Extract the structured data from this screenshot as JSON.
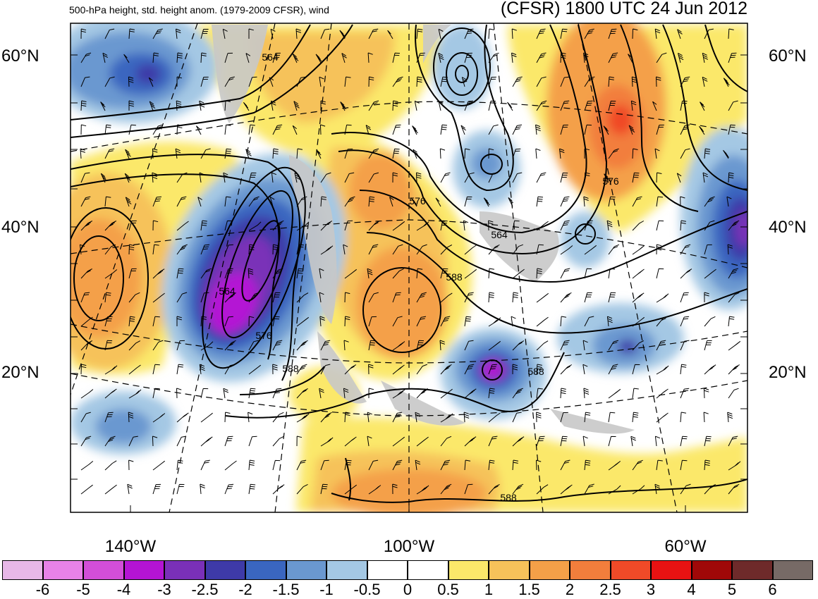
{
  "header": {
    "subtitle": "500-hPa height, std. height anom. (1979-2009 CFSR), wind",
    "title": "(CFSR) 1800 UTC 24 Jun 2012"
  },
  "map": {
    "lat_labels": [
      "60°N",
      "40°N",
      "20°N"
    ],
    "lon_labels": [
      "140°W",
      "100°W",
      "60°W"
    ],
    "contour_labels": [
      "564",
      "576",
      "564",
      "588",
      "564",
      "576",
      "588",
      "588",
      "576",
      "588"
    ]
  },
  "colorbar": {
    "colors": [
      "#e8b8e8",
      "#e882e8",
      "#d24ed8",
      "#b414d4",
      "#7a30b8",
      "#3e3aa8",
      "#3a66c0",
      "#6a98d0",
      "#a4c8e4",
      "#ffffff",
      "#ffffff",
      "#fbe86a",
      "#f6c25a",
      "#f4a048",
      "#f27e3c",
      "#f04a28",
      "#e81212",
      "#a00808",
      "#6e2a2a",
      "#776a66"
    ],
    "tick_labels": [
      "-6",
      "-5",
      "-4",
      "-3",
      "-2.5",
      "-2",
      "-1.5",
      "-1",
      "-0.5",
      "0",
      "0.5",
      "1",
      "1.5",
      "2",
      "2.5",
      "3",
      "4",
      "5",
      "6"
    ]
  }
}
